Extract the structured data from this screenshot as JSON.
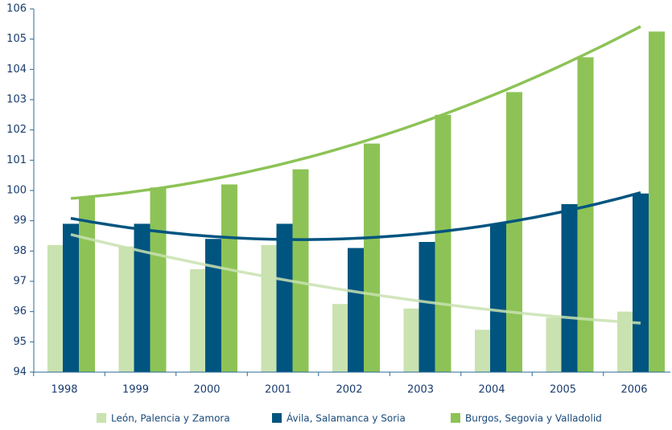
{
  "chart_data": {
    "type": "bar",
    "categories": [
      "1998",
      "1999",
      "2000",
      "2001",
      "2002",
      "2003",
      "2004",
      "2005",
      "2006"
    ],
    "series": [
      {
        "name": "León, Palencia y Zamora",
        "color": "#c9e2b0",
        "values": [
          98.2,
          98.15,
          97.4,
          98.2,
          96.25,
          96.1,
          95.4,
          95.8,
          96.0
        ]
      },
      {
        "name": "Ávila, Salamanca y Soria",
        "color": "#005480",
        "values": [
          98.9,
          98.9,
          98.4,
          98.9,
          98.1,
          98.3,
          98.9,
          99.55,
          99.9
        ]
      },
      {
        "name": "Burgos, Segovia y Valladolid",
        "color": "#8dc356",
        "values": [
          99.8,
          100.1,
          100.2,
          100.7,
          101.55,
          102.5,
          103.25,
          104.4,
          105.25
        ]
      }
    ],
    "ylim": [
      94,
      106
    ],
    "yticks": [
      94,
      95,
      96,
      97,
      98,
      99,
      100,
      101,
      102,
      103,
      104,
      105,
      106
    ],
    "trendline": true,
    "legend": "bottom"
  }
}
